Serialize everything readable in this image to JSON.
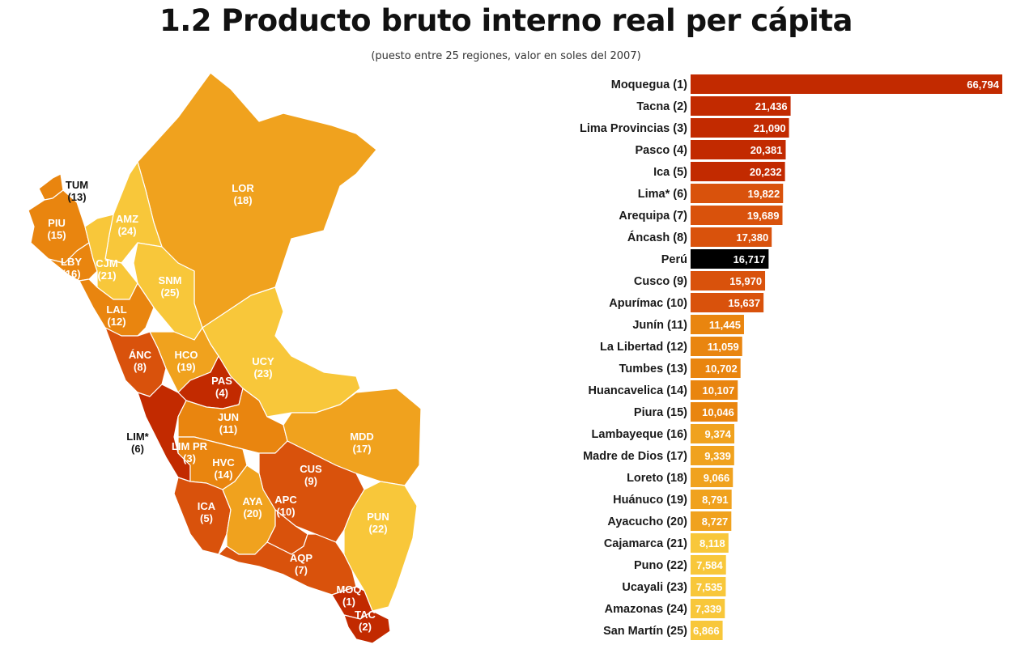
{
  "header": {
    "title": "1.2 Producto bruto interno real per cápita",
    "subtitle": "(puesto entre 25 regiones, valor en soles del 2007)"
  },
  "colors": {
    "rank_1_5": "#c22a00",
    "rank_6_10": "#d9520c",
    "rank_11_15": "#e9850f",
    "rank_16_20": "#f0a21e",
    "rank_21_25": "#f8c73a",
    "national": "#000000"
  },
  "map": {
    "regions": [
      {
        "code": "TUM",
        "rank": "(13)",
        "label_color": "#111111"
      },
      {
        "code": "PIU",
        "rank": "(15)",
        "label_color": "#ffffff"
      },
      {
        "code": "LBY",
        "rank": "(16)",
        "label_color": "#ffffff"
      },
      {
        "code": "CJM",
        "rank": "(21)",
        "label_color": "#ffffff"
      },
      {
        "code": "AMZ",
        "rank": "(24)",
        "label_color": "#ffffff"
      },
      {
        "code": "LOR",
        "rank": "(18)",
        "label_color": "#ffffff"
      },
      {
        "code": "SNM",
        "rank": "(25)",
        "label_color": "#ffffff"
      },
      {
        "code": "LAL",
        "rank": "(12)",
        "label_color": "#ffffff"
      },
      {
        "code": "ÁNC",
        "rank": "(8)",
        "label_color": "#ffffff"
      },
      {
        "code": "HCO",
        "rank": "(19)",
        "label_color": "#ffffff"
      },
      {
        "code": "UCY",
        "rank": "(23)",
        "label_color": "#ffffff"
      },
      {
        "code": "PAS",
        "rank": "(4)",
        "label_color": "#ffffff"
      },
      {
        "code": "JUN",
        "rank": "(11)",
        "label_color": "#ffffff"
      },
      {
        "code": "LIM*",
        "rank": "(6)",
        "label_color": "#111111"
      },
      {
        "code": "LIM PR",
        "rank": "(3)",
        "label_color": "#ffffff"
      },
      {
        "code": "HVC",
        "rank": "(14)",
        "label_color": "#ffffff"
      },
      {
        "code": "MDD",
        "rank": "(17)",
        "label_color": "#ffffff"
      },
      {
        "code": "CUS",
        "rank": "(9)",
        "label_color": "#ffffff"
      },
      {
        "code": "ICA",
        "rank": "(5)",
        "label_color": "#ffffff"
      },
      {
        "code": "AYA",
        "rank": "(20)",
        "label_color": "#ffffff"
      },
      {
        "code": "APC",
        "rank": "(10)",
        "label_color": "#ffffff"
      },
      {
        "code": "PUN",
        "rank": "(22)",
        "label_color": "#ffffff"
      },
      {
        "code": "AQP",
        "rank": "(7)",
        "label_color": "#ffffff"
      },
      {
        "code": "MOQ",
        "rank": "(1)",
        "label_color": "#ffffff"
      },
      {
        "code": "TAC",
        "rank": "(2)",
        "label_color": "#ffffff"
      }
    ]
  },
  "chart_data": {
    "type": "bar",
    "orientation": "horizontal",
    "title": "1.2 Producto bruto interno real per cápita",
    "subtitle": "(puesto entre 25 regiones, valor en soles del 2007)",
    "xlim": [
      0,
      66794
    ],
    "grid": false,
    "categories": [
      "Moquegua (1)",
      "Tacna (2)",
      "Lima Provincias (3)",
      "Pasco (4)",
      "Ica (5)",
      "Lima* (6)",
      "Arequipa (7)",
      "Áncash (8)",
      "Perú",
      "Cusco (9)",
      "Apurímac (10)",
      "Junín (11)",
      "La Libertad (12)",
      "Tumbes (13)",
      "Huancavelica (14)",
      "Piura (15)",
      "Lambayeque (16)",
      "Madre de Dios (17)",
      "Loreto (18)",
      "Huánuco (19)",
      "Ayacucho (20)",
      "Cajamarca (21)",
      "Puno (22)",
      "Ucayali (23)",
      "Amazonas (24)",
      "San Martín (25)"
    ],
    "values": [
      66794,
      21436,
      21090,
      20381,
      20232,
      19822,
      19689,
      17380,
      16717,
      15970,
      15637,
      11445,
      11059,
      10702,
      10107,
      10046,
      9374,
      9339,
      9066,
      8791,
      8727,
      8118,
      7584,
      7535,
      7339,
      6866
    ],
    "labels": [
      "66,794",
      "21,436",
      "21,090",
      "20,381",
      "20,232",
      "19,822",
      "19,689",
      "17,380",
      "16,717",
      "15,970",
      "15,637",
      "11,445",
      "11,059",
      "10,702",
      "10,107",
      "10,046",
      "9,374",
      "9,339",
      "9,066",
      "8,791",
      "8,727",
      "8,118",
      "7,584",
      "7,535",
      "7,339",
      "6,866"
    ],
    "colors": [
      "#c22a00",
      "#c22a00",
      "#c22a00",
      "#c22a00",
      "#c22a00",
      "#d9520c",
      "#d9520c",
      "#d9520c",
      "#000000",
      "#d9520c",
      "#d9520c",
      "#e9850f",
      "#e9850f",
      "#e9850f",
      "#e9850f",
      "#e9850f",
      "#f0a21e",
      "#f0a21e",
      "#f0a21e",
      "#f0a21e",
      "#f0a21e",
      "#f8c73a",
      "#f8c73a",
      "#f8c73a",
      "#f8c73a",
      "#f8c73a"
    ]
  }
}
